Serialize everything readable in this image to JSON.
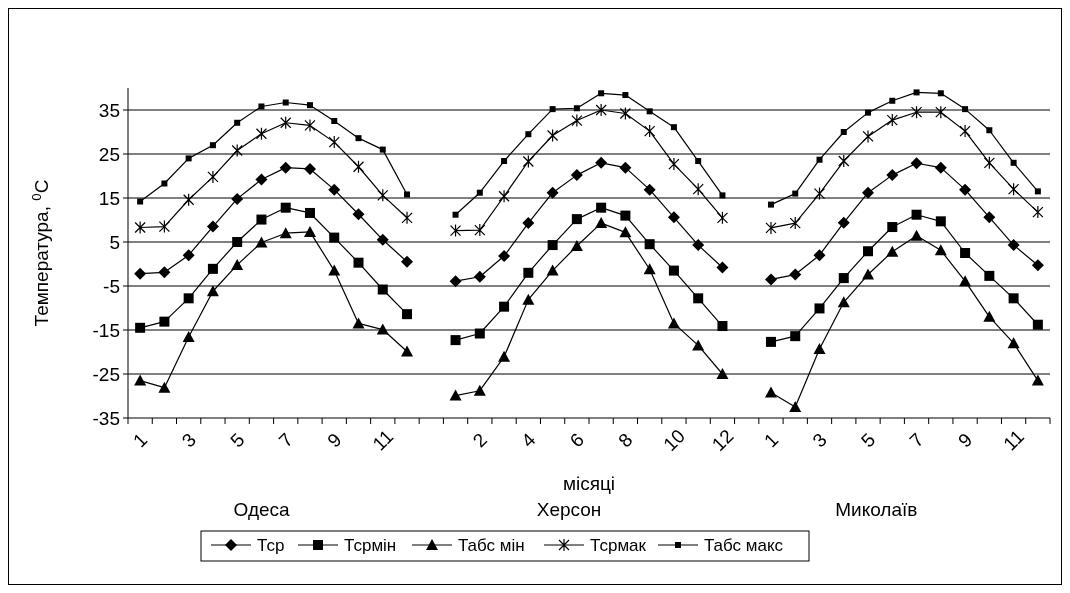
{
  "chart_data": {
    "type": "line",
    "xlabel": "місяці",
    "ylabel": "Температура, $^{0}$C",
    "categories": [
      "1",
      null,
      "3",
      null,
      "5",
      null,
      "7",
      null,
      "9",
      null,
      "11",
      null,
      null,
      null,
      "2",
      null,
      "4",
      null,
      "6",
      null,
      "8",
      null,
      "10",
      null,
      "12",
      null,
      "1",
      null,
      "3",
      null,
      "5",
      null,
      "7",
      null,
      "9",
      null,
      "11",
      null
    ],
    "series": [
      {
        "name": "Тср",
        "color": "#000000",
        "marker": "diamond",
        "values": [
          -2.2,
          -1.9,
          2.0,
          8.5,
          14.8,
          19.2,
          21.9,
          21.6,
          16.9,
          11.3,
          5.5,
          0.5,
          null,
          -3.9,
          -2.9,
          1.8,
          9.3,
          16.2,
          20.2,
          23.0,
          21.9,
          16.9,
          10.6,
          4.3,
          -0.8,
          null,
          -3.5,
          -2.4,
          2.0,
          9.4,
          16.2,
          20.2,
          22.9,
          21.9,
          16.9,
          10.6,
          4.3,
          -0.3
        ]
      },
      {
        "name": "Тсрмін",
        "color": "#000000",
        "marker": "square",
        "values": [
          -14.5,
          -13.1,
          -7.8,
          -1.1,
          5.0,
          10.1,
          12.8,
          11.6,
          6.0,
          0.3,
          -5.8,
          -11.4,
          null,
          -17.3,
          -15.8,
          -9.7,
          -2.0,
          4.3,
          10.2,
          12.8,
          11.0,
          4.5,
          -1.5,
          -7.8,
          -14.1,
          null,
          -17.7,
          -16.4,
          -10.1,
          -3.2,
          2.9,
          8.4,
          11.2,
          9.7,
          2.5,
          -2.7,
          -7.8,
          -13.8
        ]
      },
      {
        "name": "Табс мін",
        "color": "#000000",
        "marker": "triangle",
        "values": [
          -26.5,
          -28.1,
          -16.6,
          -6.2,
          -0.2,
          4.9,
          7.0,
          7.3,
          -1.5,
          -13.5,
          -14.9,
          -19.9,
          null,
          -29.9,
          -28.8,
          -21.1,
          -8.1,
          -1.5,
          4.1,
          9.3,
          7.2,
          -1.2,
          -13.5,
          -18.5,
          -25.0,
          null,
          -29.2,
          -32.5,
          -19.3,
          -8.7,
          -2.4,
          2.8,
          6.4,
          3.1,
          -3.9,
          -12.0,
          -18.0,
          -26.5
        ]
      },
      {
        "name": "Тсрмак",
        "color": "#000000",
        "marker": "cross",
        "values": [
          8.3,
          8.5,
          14.6,
          19.8,
          25.8,
          29.6,
          32.1,
          31.5,
          27.7,
          22.1,
          15.6,
          10.5,
          null,
          7.6,
          7.7,
          15.4,
          23.3,
          29.2,
          32.6,
          35.0,
          34.2,
          30.2,
          22.7,
          17.0,
          10.5,
          null,
          8.2,
          9.3,
          16.0,
          23.4,
          29.0,
          32.7,
          34.5,
          34.5,
          30.2,
          23.0,
          17.0,
          11.8
        ]
      },
      {
        "name": "Табс макс",
        "color": "#000000",
        "marker": "square",
        "values": [
          14.2,
          18.3,
          24.0,
          27.0,
          32.1,
          35.8,
          36.7,
          36.1,
          32.5,
          28.6,
          26.0,
          15.8,
          null,
          11.2,
          16.2,
          23.4,
          29.5,
          35.2,
          35.4,
          38.8,
          38.4,
          34.7,
          31.1,
          23.4,
          15.6,
          null,
          13.5,
          16.0,
          23.7,
          30.0,
          34.4,
          37.1,
          39.0,
          38.8,
          35.2,
          30.4,
          23.0,
          16.5
        ]
      }
    ],
    "ylim": [
      -35,
      40
    ],
    "yticks": [
      -35,
      -25,
      -15,
      -5,
      5,
      15,
      25,
      35
    ],
    "grid": "y",
    "legend": "bottom",
    "annotations": [
      "Одеса",
      "Херсон",
      "Миколаїв"
    ]
  }
}
